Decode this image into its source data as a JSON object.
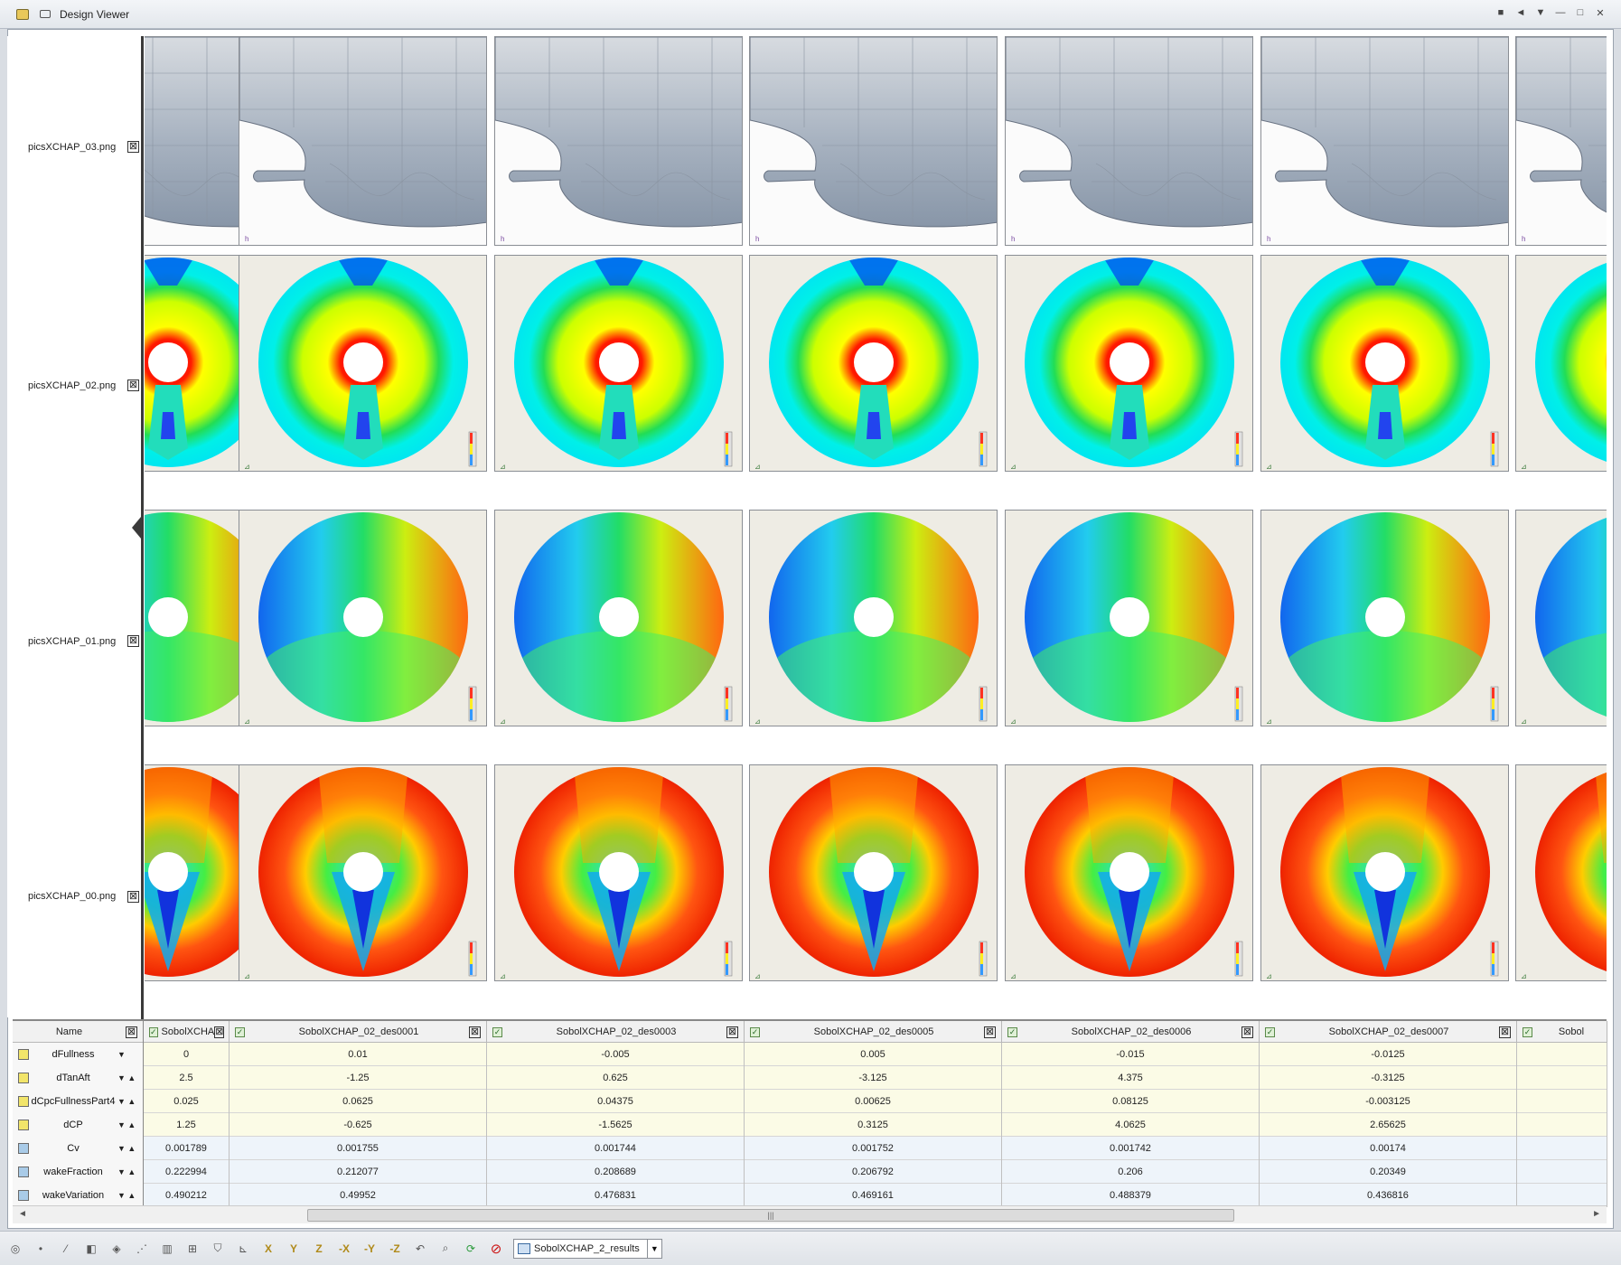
{
  "window": {
    "title": "Design Viewer",
    "controls": [
      "■",
      "◄",
      "▼",
      "—",
      "□",
      "✕"
    ]
  },
  "rows": [
    {
      "label": "picsXCHAP_03.png",
      "type": "hull",
      "close_glyph": "⊠"
    },
    {
      "label": "picsXCHAP_02.png",
      "type": "wake-axial",
      "close_glyph": "⊠"
    },
    {
      "label": "picsXCHAP_01.png",
      "type": "wake-tangential",
      "close_glyph": "⊠"
    },
    {
      "label": "picsXCHAP_00.png",
      "type": "wake-total",
      "close_glyph": "⊠"
    }
  ],
  "table": {
    "name_header": "Name",
    "columns": [
      "SobolXCHA",
      "SobolXCHAP_02_des0001",
      "SobolXCHAP_02_des0003",
      "SobolXCHAP_02_des0005",
      "SobolXCHAP_02_des0006",
      "SobolXCHAP_02_des0007",
      "Sobol"
    ],
    "parameters": [
      {
        "name": "dFullness",
        "kind": "input",
        "arrows": "▼",
        "values": [
          "0",
          "0.01",
          "-0.005",
          "0.005",
          "-0.015",
          "-0.0125",
          ""
        ]
      },
      {
        "name": "dTanAft",
        "kind": "input",
        "arrows": "▼ ▲",
        "values": [
          "2.5",
          "-1.25",
          "0.625",
          "-3.125",
          "4.375",
          "-0.3125",
          ""
        ]
      },
      {
        "name": "dCpcFullnessPart4",
        "kind": "input",
        "arrows": "▼ ▲",
        "values": [
          "0.025",
          "0.0625",
          "0.04375",
          "0.00625",
          "0.08125",
          "-0.003125",
          ""
        ]
      },
      {
        "name": "dCP",
        "kind": "input",
        "arrows": "▼ ▲",
        "values": [
          "1.25",
          "-0.625",
          "-1.5625",
          "0.3125",
          "4.0625",
          "2.65625",
          ""
        ]
      },
      {
        "name": "Cv",
        "kind": "output",
        "arrows": "▼ ▲",
        "values": [
          "0.001789",
          "0.001755",
          "0.001744",
          "0.001752",
          "0.001742",
          "0.00174",
          ""
        ]
      },
      {
        "name": "wakeFraction",
        "kind": "output",
        "arrows": "▼ ▲",
        "values": [
          "0.222994",
          "0.212077",
          "0.208689",
          "0.206792",
          "0.206",
          "0.20349",
          ""
        ]
      },
      {
        "name": "wakeVariation",
        "kind": "output",
        "arrows": "▼ ▲",
        "values": [
          "0.490212",
          "0.49952",
          "0.476831",
          "0.469161",
          "0.488379",
          "0.436816",
          ""
        ]
      }
    ]
  },
  "scrollbar": {
    "left_arrow": "◄",
    "right_arrow": "►",
    "grip": "|||"
  },
  "toolbar": {
    "icons": [
      "view-icon",
      "point-icon",
      "curve-icon",
      "surface-icon",
      "solid-icon",
      "line-icon",
      "grid-icon",
      "mesh-icon",
      "shield-icon",
      "axes-icon",
      "x-axis-icon",
      "y-axis-icon",
      "z-axis-icon",
      "neg-x-icon",
      "neg-y-icon",
      "neg-z-icon",
      "undo-icon",
      "zoom-icon",
      "refresh-icon",
      "stop-icon"
    ],
    "glyphs": [
      "◎",
      "•",
      "⁄",
      "◧",
      "◈",
      "⋰",
      "▥",
      "⊞",
      "⛉",
      "⊾",
      "X",
      "Y",
      "Z",
      "-X",
      "-Y",
      "-Z",
      "↶",
      "⌕",
      "⟳",
      "⊘"
    ],
    "result_label": "SobolXCHAP_2_results",
    "dropdown": "▼"
  },
  "colors": {
    "input_row": "#fbfbe6",
    "output_row": "#eef4fa",
    "accent": "#3a6aa0"
  }
}
